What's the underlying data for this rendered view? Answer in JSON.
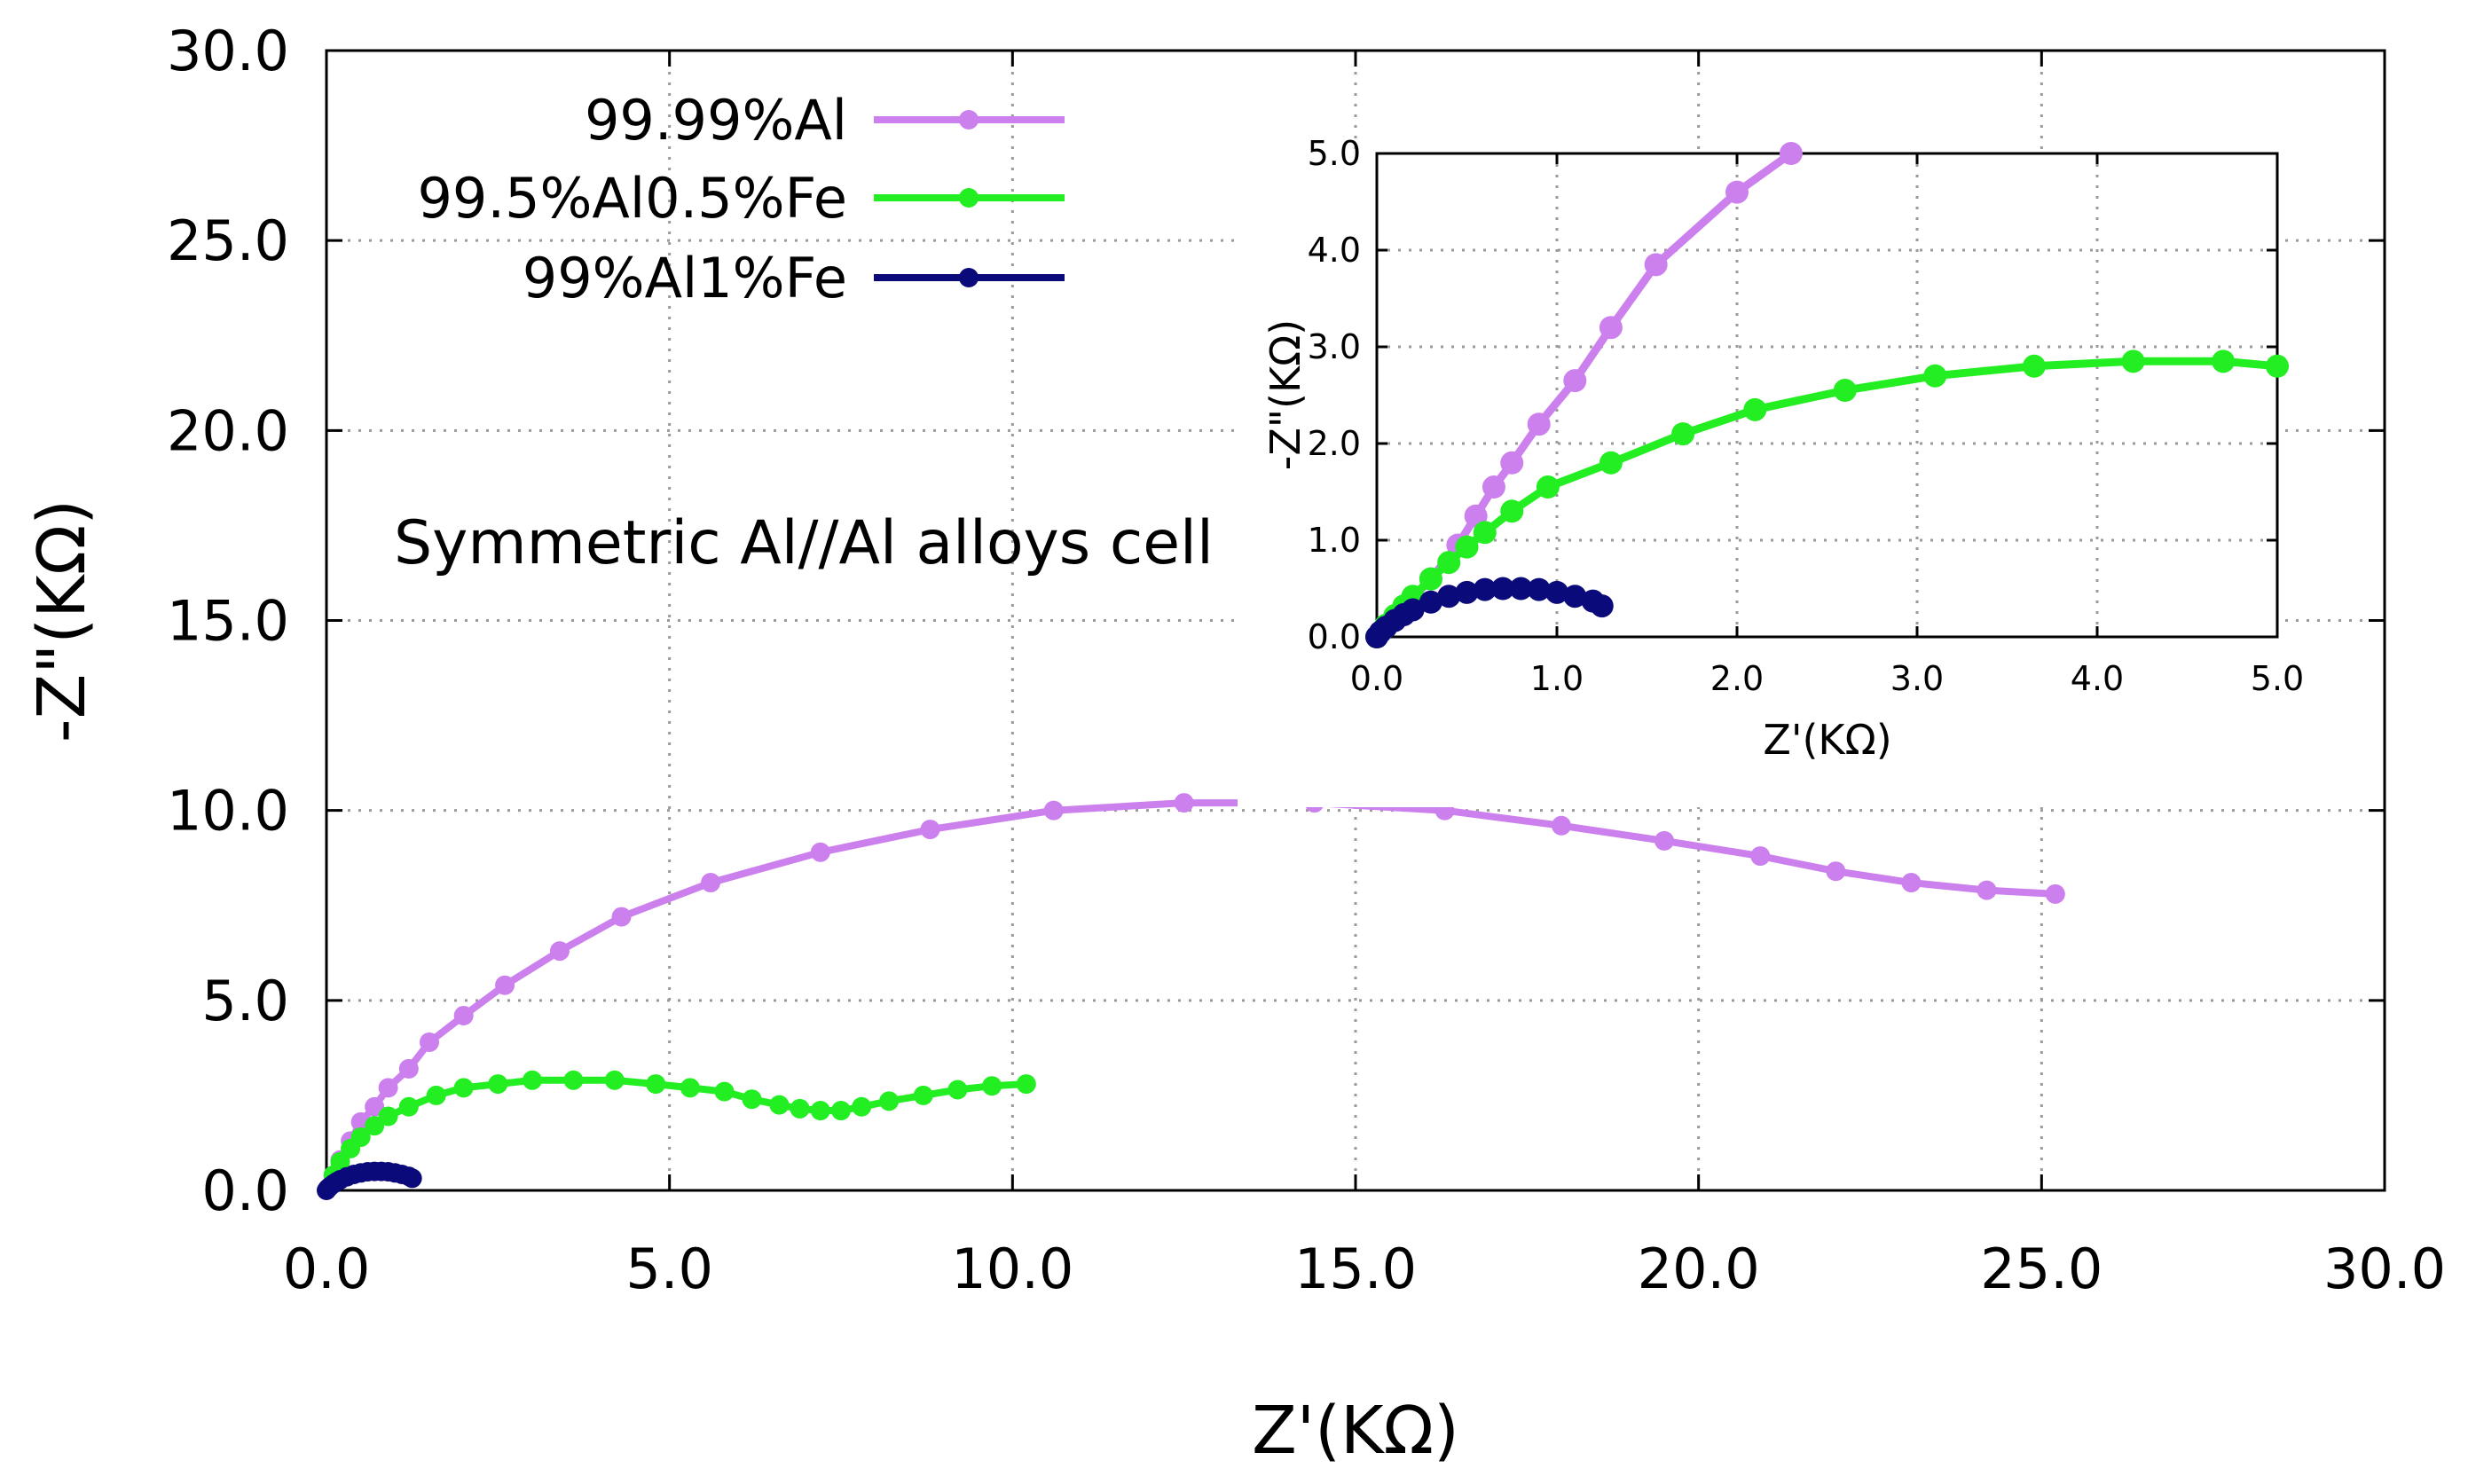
{
  "chart_data": [
    {
      "name": "main",
      "type": "line",
      "xlabel": "Z'(KΩ)",
      "ylabel": "-Z\"(KΩ)",
      "xlim": [
        0,
        30
      ],
      "ylim": [
        0,
        30
      ],
      "xticks": [
        "0.0",
        "5.0",
        "10.0",
        "15.0",
        "20.0",
        "25.0",
        "30.0"
      ],
      "yticks": [
        "0.0",
        "5.0",
        "10.0",
        "15.0",
        "20.0",
        "25.0",
        "30.0"
      ],
      "grid": true,
      "legend_position": "top-left",
      "annotation": "Symmetric Al//Al alloys cell",
      "series": [
        {
          "name": "99.99%Al",
          "color": "#cc80ee",
          "x": [
            0.02,
            0.1,
            0.2,
            0.35,
            0.5,
            0.7,
            0.9,
            1.2,
            1.5,
            2.0,
            2.6,
            3.4,
            4.3,
            5.6,
            7.2,
            8.8,
            10.6,
            12.5,
            14.4,
            16.3,
            18.0,
            19.5,
            20.9,
            22.0,
            23.1,
            24.2,
            25.2
          ],
          "y": [
            0.05,
            0.4,
            0.8,
            1.3,
            1.8,
            2.2,
            2.7,
            3.2,
            3.9,
            4.6,
            5.4,
            6.3,
            7.2,
            8.1,
            8.9,
            9.5,
            10.0,
            10.2,
            10.2,
            10.0,
            9.6,
            9.2,
            8.8,
            8.4,
            8.1,
            7.9,
            7.8
          ]
        },
        {
          "name": "99.5%Al0.5%Fe",
          "color": "#22ee22",
          "x": [
            0.02,
            0.1,
            0.2,
            0.35,
            0.5,
            0.7,
            0.9,
            1.2,
            1.6,
            2.0,
            2.5,
            3.0,
            3.6,
            4.2,
            4.8,
            5.3,
            5.8,
            6.2,
            6.6,
            6.9,
            7.2,
            7.5,
            7.8,
            8.2,
            8.7,
            9.2,
            9.7,
            10.2
          ],
          "y": [
            0.05,
            0.4,
            0.75,
            1.1,
            1.4,
            1.7,
            1.95,
            2.2,
            2.5,
            2.7,
            2.8,
            2.9,
            2.9,
            2.9,
            2.8,
            2.7,
            2.6,
            2.4,
            2.25,
            2.15,
            2.1,
            2.1,
            2.2,
            2.35,
            2.5,
            2.65,
            2.75,
            2.8
          ]
        },
        {
          "name": "99%Al1%Fe",
          "color": "#0a0a7a",
          "x": [
            0.0,
            0.02,
            0.05,
            0.1,
            0.15,
            0.2,
            0.3,
            0.4,
            0.5,
            0.6,
            0.7,
            0.8,
            0.9,
            1.0,
            1.1,
            1.2,
            1.25
          ],
          "y": [
            0.0,
            0.05,
            0.1,
            0.17,
            0.23,
            0.28,
            0.36,
            0.42,
            0.46,
            0.49,
            0.5,
            0.5,
            0.49,
            0.46,
            0.42,
            0.37,
            0.32
          ]
        }
      ]
    },
    {
      "name": "inset",
      "type": "line",
      "xlabel": "Z'(KΩ)",
      "ylabel": "-Z\"(KΩ)",
      "xlim": [
        0,
        5
      ],
      "ylim": [
        0,
        5
      ],
      "xticks": [
        "0.0",
        "1.0",
        "2.0",
        "3.0",
        "4.0",
        "5.0"
      ],
      "yticks": [
        "0.0",
        "1.0",
        "2.0",
        "3.0",
        "4.0",
        "5.0"
      ],
      "grid": true,
      "series": [
        {
          "name": "99.99%Al",
          "color": "#cc80ee",
          "x": [
            0.0,
            0.05,
            0.1,
            0.2,
            0.3,
            0.45,
            0.55,
            0.65,
            0.75,
            0.9,
            1.1,
            1.3,
            1.55,
            2.0,
            2.3
          ],
          "y": [
            0.0,
            0.1,
            0.2,
            0.4,
            0.6,
            0.95,
            1.25,
            1.55,
            1.8,
            2.2,
            2.65,
            3.2,
            3.85,
            4.6,
            5.0
          ]
        },
        {
          "name": "99.5%Al0.5%Fe",
          "color": "#22ee22",
          "x": [
            0.0,
            0.05,
            0.1,
            0.15,
            0.2,
            0.3,
            0.4,
            0.5,
            0.6,
            0.75,
            0.95,
            1.3,
            1.7,
            2.1,
            2.6,
            3.1,
            3.65,
            4.2,
            4.7,
            5.0
          ],
          "y": [
            0.0,
            0.12,
            0.22,
            0.32,
            0.42,
            0.6,
            0.77,
            0.93,
            1.08,
            1.3,
            1.55,
            1.8,
            2.1,
            2.35,
            2.55,
            2.7,
            2.8,
            2.85,
            2.85,
            2.8
          ]
        },
        {
          "name": "99%Al1%Fe",
          "color": "#0a0a7a",
          "x": [
            0.0,
            0.02,
            0.05,
            0.1,
            0.15,
            0.2,
            0.3,
            0.4,
            0.5,
            0.6,
            0.7,
            0.8,
            0.9,
            1.0,
            1.1,
            1.2,
            1.25
          ],
          "y": [
            0.0,
            0.05,
            0.1,
            0.17,
            0.23,
            0.28,
            0.36,
            0.42,
            0.46,
            0.49,
            0.5,
            0.5,
            0.49,
            0.46,
            0.42,
            0.37,
            0.32
          ]
        }
      ]
    }
  ]
}
